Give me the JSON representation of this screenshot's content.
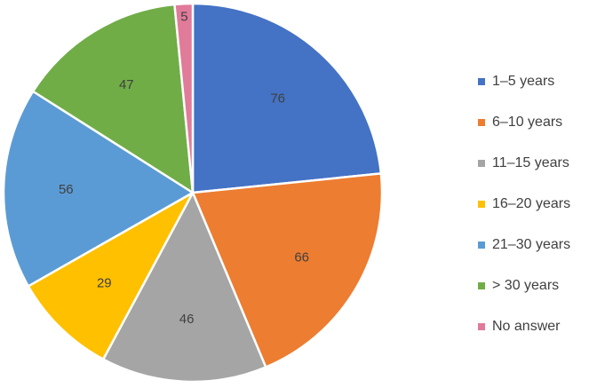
{
  "chart_data": {
    "type": "pie",
    "title": "",
    "categories": [
      "1–5 years",
      "6–10 years",
      "11–15 years",
      "16–20 years",
      "21–30 years",
      "> 30 years",
      "No answer"
    ],
    "values": [
      76,
      66,
      46,
      29,
      56,
      47,
      5
    ],
    "labels": [
      "76",
      "66",
      "46",
      "29",
      "56",
      "47",
      "5"
    ],
    "colors": [
      "#4472C4",
      "#ED7D31",
      "#A5A5A5",
      "#FFC000",
      "#5B9BD5",
      "#70AD47",
      "#E07B9A"
    ],
    "start_angle_deg": 0,
    "direction": "clockwise",
    "legend_position": "right",
    "data_labels": "inside"
  }
}
